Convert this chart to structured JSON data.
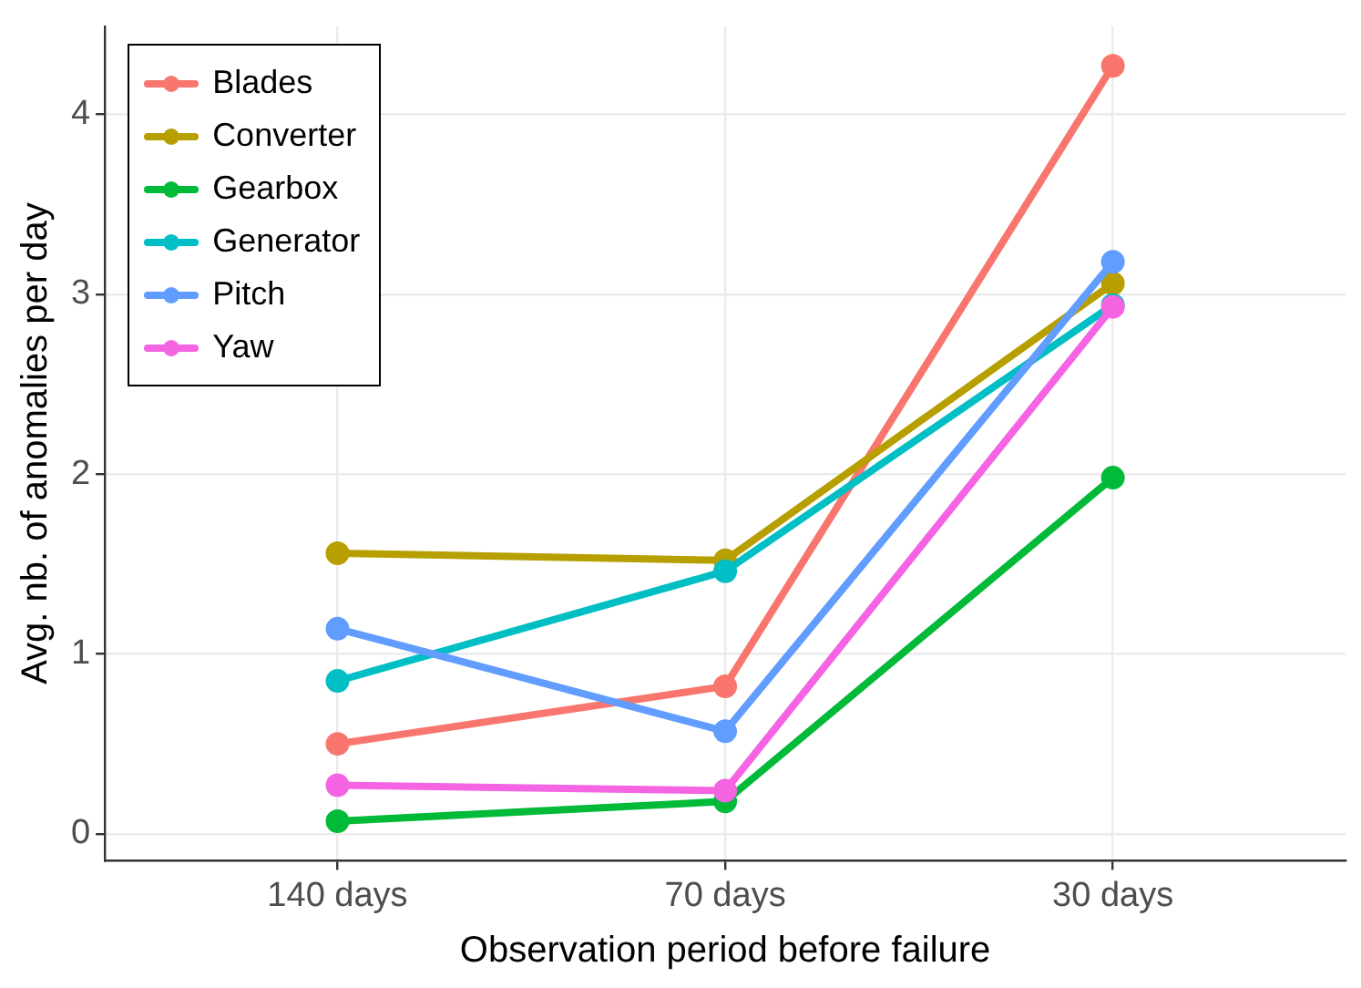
{
  "chart_data": {
    "type": "line",
    "xlabel": "Observation period before failure",
    "ylabel": "Avg. nb. of anomalies per day",
    "categories": [
      "140 days",
      "70 days",
      "30 days"
    ],
    "series": [
      {
        "name": "Blades",
        "color": "#f8766d",
        "values": [
          0.5,
          0.82,
          4.27
        ]
      },
      {
        "name": "Converter",
        "color": "#b79f00",
        "values": [
          1.56,
          1.52,
          3.06
        ]
      },
      {
        "name": "Gearbox",
        "color": "#00ba38",
        "values": [
          0.07,
          0.18,
          1.98
        ]
      },
      {
        "name": "Generator",
        "color": "#00bfc4",
        "values": [
          0.85,
          1.46,
          2.94
        ]
      },
      {
        "name": "Pitch",
        "color": "#619cff",
        "values": [
          1.14,
          0.57,
          3.18
        ]
      },
      {
        "name": "Yaw",
        "color": "#f564e3",
        "values": [
          0.27,
          0.24,
          2.93
        ]
      }
    ],
    "ylim": [
      -0.15,
      4.49
    ],
    "yticks": [
      0,
      1,
      2,
      3,
      4
    ],
    "grid": true,
    "legend": "top left",
    "marker": "circle",
    "line_style": "solid"
  }
}
